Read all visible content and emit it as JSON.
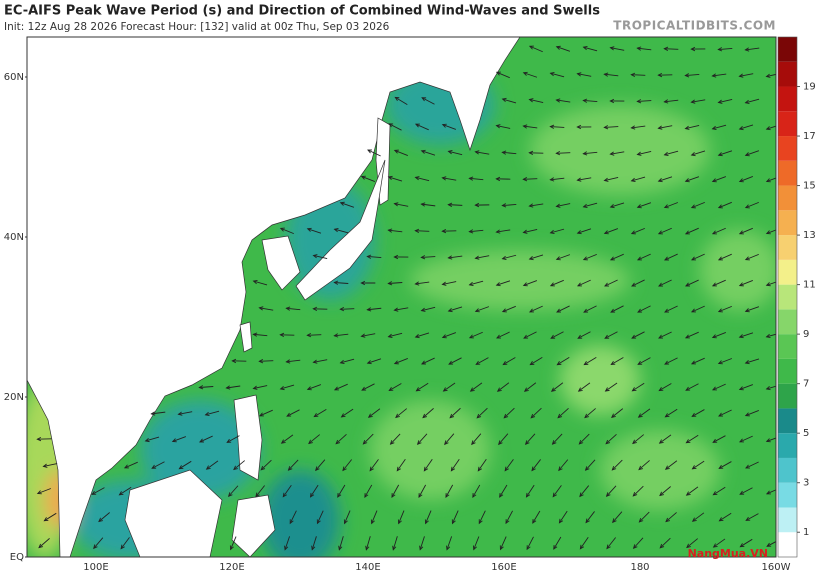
{
  "header": {
    "title": "EC-AIFS Peak Wave Period (s) and Direction of Combined Wind-Waves and Swells",
    "subtitle": "Init: 12z Aug 28 2026   Forecast Hour: [132]   valid at 00z Thu, Sep 03 2026",
    "source": "TROPICALTIDBITS.COM",
    "watermark": "NangMua.VN"
  },
  "map": {
    "lat_labels": [
      "60N",
      "40N",
      "20N",
      "EQ"
    ],
    "lon_labels": [
      "100E",
      "120E",
      "140E",
      "160E",
      "180",
      "160W"
    ]
  },
  "colorbar": {
    "range": [
      0,
      21
    ],
    "ticks": [
      1,
      3,
      5,
      7,
      9,
      11,
      13,
      15,
      17,
      19
    ]
  }
}
